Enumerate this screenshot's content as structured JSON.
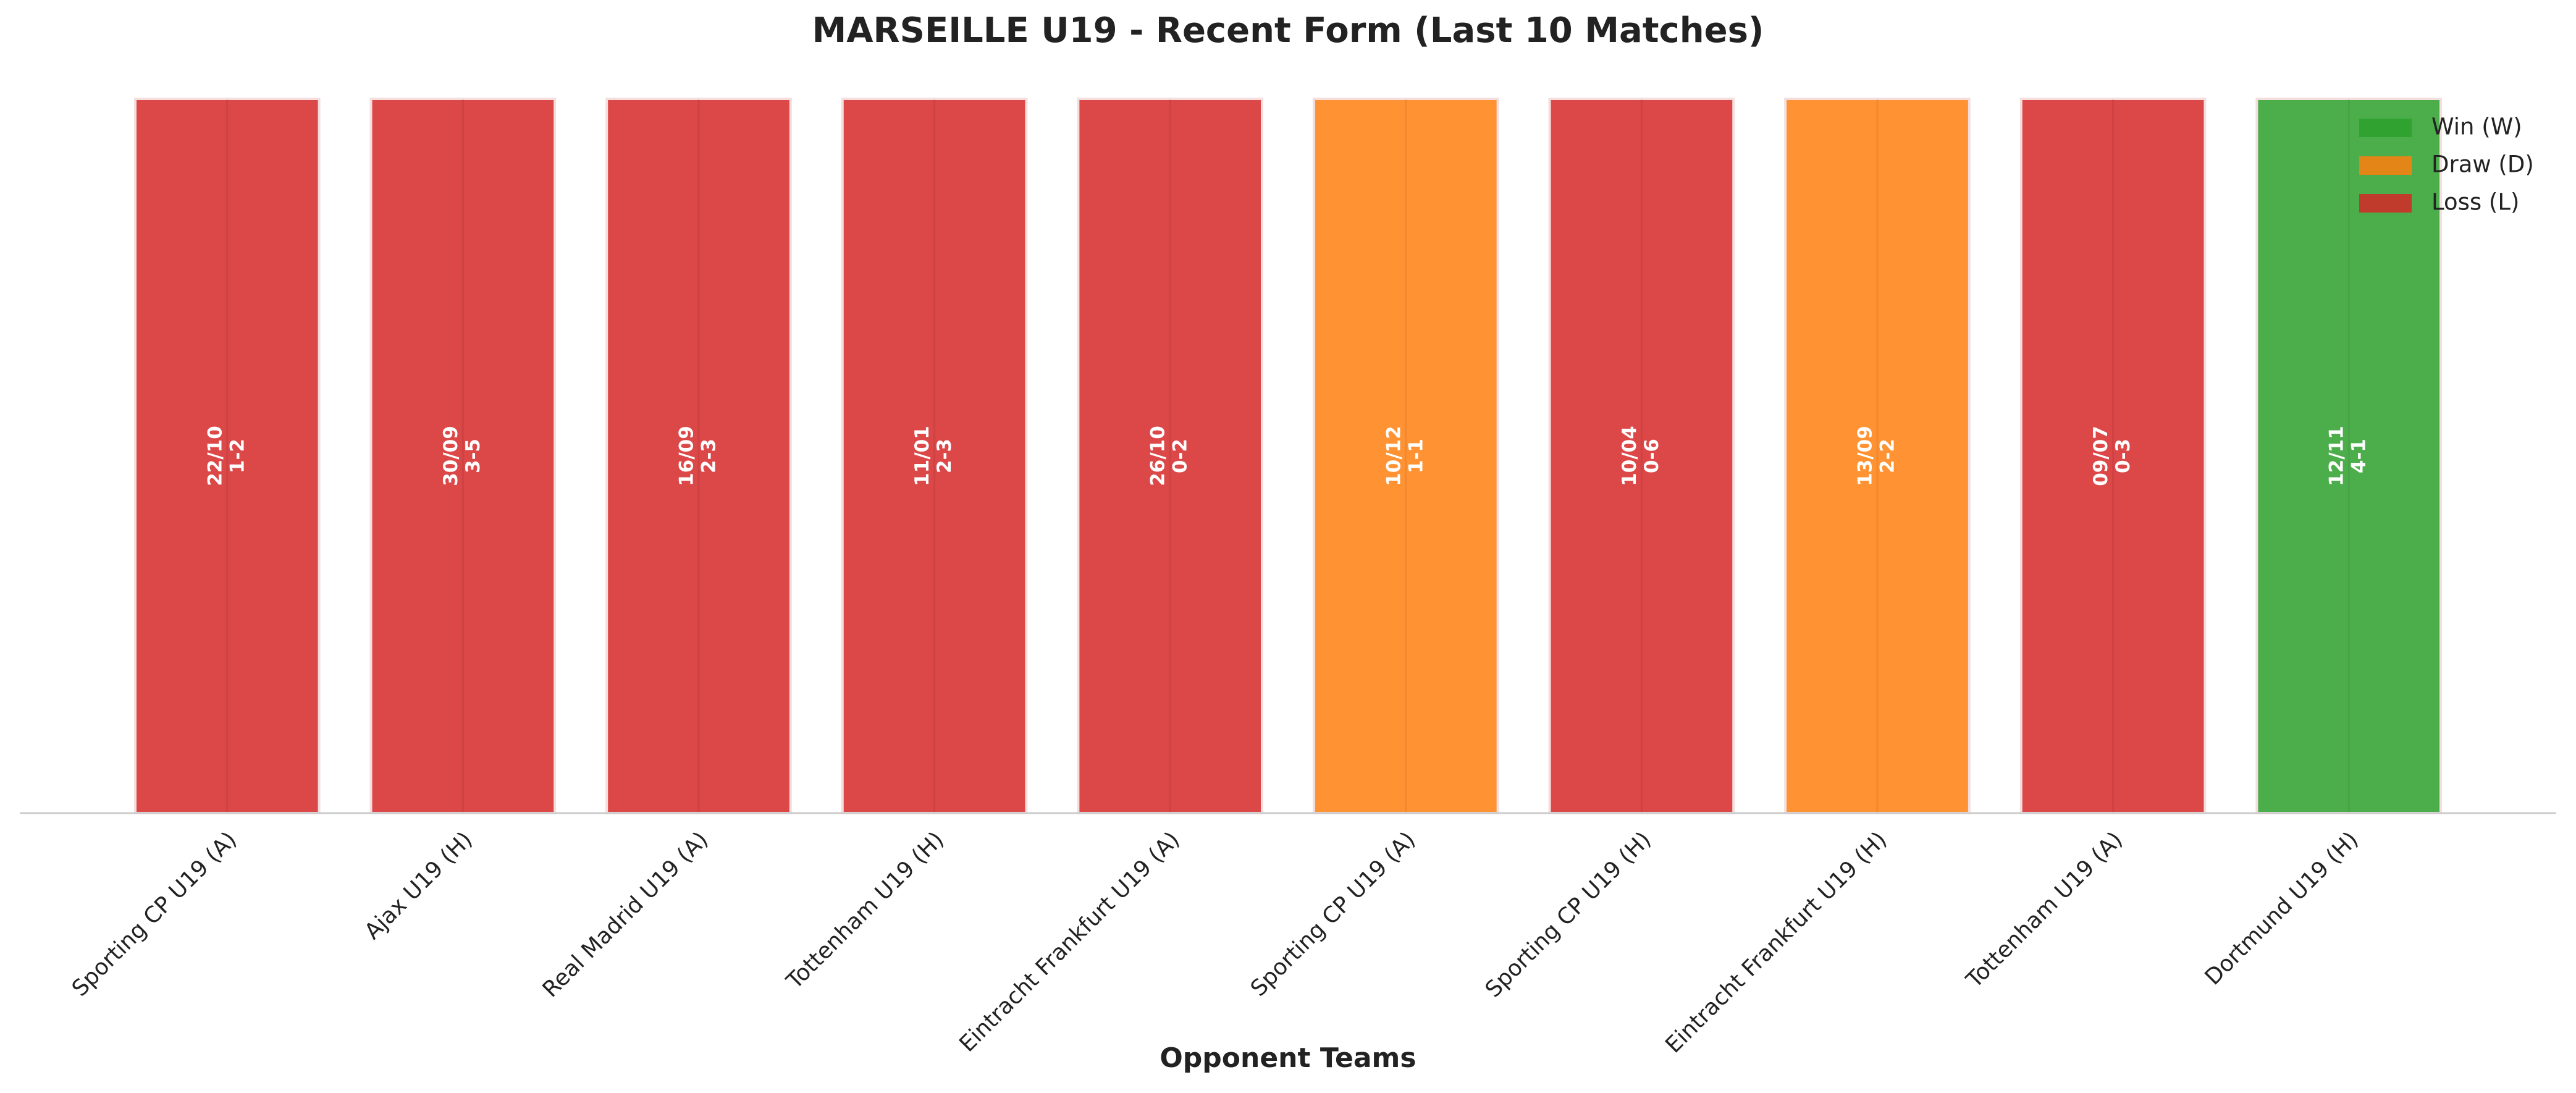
{
  "chart_data": {
    "type": "bar",
    "title": "MARSEILLE U19 - Recent Form (Last 10 Matches)",
    "x_label": "Opponent Teams",
    "categories": [
      "Sporting CP U19 (A)",
      "Ajax U19 (H)",
      "Real Madrid U19 (A)",
      "Tottenham U19 (H)",
      "Eintracht Frankfurt U19 (A)",
      "Sporting CP U19 (A)",
      "Sporting CP U19 (H)",
      "Eintracht Frankfurt U19 (H)",
      "Tottenham U19 (A)",
      "Dortmund U19 (H)"
    ],
    "values": [
      1,
      1,
      1,
      1,
      1,
      1,
      1,
      1,
      1,
      1
    ],
    "ylim": [
      0,
      1
    ],
    "dates": [
      "22/10",
      "30/09",
      "16/09",
      "11/01",
      "26/10",
      "10/12",
      "10/04",
      "13/09",
      "09/07",
      "12/11"
    ],
    "scores": [
      "1-2",
      "3-5",
      "2-3",
      "2-3",
      "0-2",
      "1-1",
      "0-6",
      "2-2",
      "0-3",
      "4-1"
    ],
    "colors": [
      "#d62728",
      "#d62728",
      "#d62728",
      "#d62728",
      "#d62728",
      "#ff7f0e",
      "#d62728",
      "#ff7f0e",
      "#d62728",
      "#2ca02c"
    ],
    "legend": [
      {
        "name": "Win (W)",
        "color": "#2ca02c"
      },
      {
        "name": "Draw (D)",
        "color": "#ff7f0e"
      },
      {
        "name": "Loss (L)",
        "color": "#d62728"
      }
    ],
    "legend_position": "upper right"
  }
}
